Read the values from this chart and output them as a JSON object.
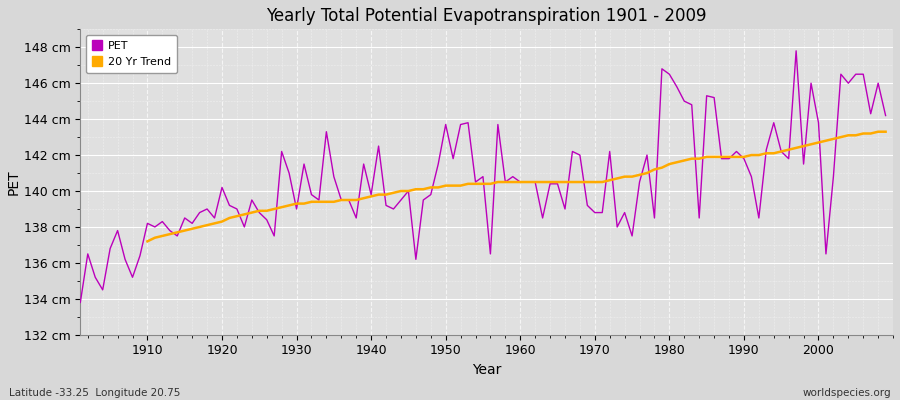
{
  "title": "Yearly Total Potential Evapotranspiration 1901 - 2009",
  "xlabel": "Year",
  "ylabel": "PET",
  "lat_lon_label": "Latitude -33.25  Longitude 20.75",
  "watermark": "worldspecies.org",
  "pet_color": "#bb00bb",
  "trend_color": "#ffaa00",
  "bg_color": "#d8d8d8",
  "plot_bg_color": "#e0e0e0",
  "grid_color": "#ffffff",
  "ylim": [
    132,
    149
  ],
  "yticks": [
    132,
    134,
    136,
    138,
    140,
    142,
    144,
    146,
    148
  ],
  "ytick_labels": [
    "132 cm",
    "134 cm",
    "136 cm",
    "138 cm",
    "140 cm",
    "142 cm",
    "144 cm",
    "146 cm",
    "148 cm"
  ],
  "xticks": [
    1910,
    1920,
    1930,
    1940,
    1950,
    1960,
    1970,
    1980,
    1990,
    2000
  ],
  "xlim": [
    1901,
    2010
  ],
  "years": [
    1901,
    1902,
    1903,
    1904,
    1905,
    1906,
    1907,
    1908,
    1909,
    1910,
    1911,
    1912,
    1913,
    1914,
    1915,
    1916,
    1917,
    1918,
    1919,
    1920,
    1921,
    1922,
    1923,
    1924,
    1925,
    1926,
    1927,
    1928,
    1929,
    1930,
    1931,
    1932,
    1933,
    1934,
    1935,
    1936,
    1937,
    1938,
    1939,
    1940,
    1941,
    1942,
    1943,
    1944,
    1945,
    1946,
    1947,
    1948,
    1949,
    1950,
    1951,
    1952,
    1953,
    1954,
    1955,
    1956,
    1957,
    1958,
    1959,
    1960,
    1961,
    1962,
    1963,
    1964,
    1965,
    1966,
    1967,
    1968,
    1969,
    1970,
    1971,
    1972,
    1973,
    1974,
    1975,
    1976,
    1977,
    1978,
    1979,
    1980,
    1981,
    1982,
    1983,
    1984,
    1985,
    1986,
    1987,
    1988,
    1989,
    1990,
    1991,
    1992,
    1993,
    1994,
    1995,
    1996,
    1997,
    1998,
    1999,
    2000,
    2001,
    2002,
    2003,
    2004,
    2005,
    2006,
    2007,
    2008,
    2009
  ],
  "pet": [
    133.8,
    136.5,
    135.2,
    134.5,
    136.8,
    137.8,
    136.2,
    135.2,
    136.4,
    138.2,
    138.0,
    138.3,
    137.8,
    137.5,
    138.5,
    138.2,
    138.8,
    139.0,
    138.5,
    140.2,
    139.2,
    139.0,
    138.0,
    139.5,
    138.8,
    138.4,
    137.5,
    142.2,
    141.0,
    139.0,
    141.5,
    139.8,
    139.5,
    143.3,
    140.8,
    139.5,
    139.5,
    138.5,
    141.5,
    139.8,
    142.5,
    139.2,
    139.0,
    139.5,
    140.0,
    136.2,
    139.5,
    139.8,
    141.5,
    143.7,
    141.8,
    143.7,
    143.8,
    140.5,
    140.8,
    136.5,
    143.7,
    140.5,
    140.8,
    140.5,
    140.5,
    140.5,
    138.5,
    140.4,
    140.4,
    139.0,
    142.2,
    142.0,
    139.2,
    138.8,
    138.8,
    142.2,
    138.0,
    138.8,
    137.5,
    140.5,
    142.0,
    138.5,
    146.8,
    146.5,
    145.8,
    145.0,
    144.8,
    138.5,
    145.3,
    145.2,
    141.8,
    141.8,
    142.2,
    141.8,
    140.8,
    138.5,
    142.3,
    143.8,
    142.2,
    141.8,
    147.8,
    141.5,
    146.0,
    143.8,
    136.5,
    140.8,
    146.5,
    146.0,
    146.5,
    146.5,
    144.3,
    146.0,
    144.2
  ],
  "trend_years": [
    1910,
    1911,
    1912,
    1913,
    1914,
    1915,
    1916,
    1917,
    1918,
    1919,
    1920,
    1921,
    1922,
    1923,
    1924,
    1925,
    1926,
    1927,
    1928,
    1929,
    1930,
    1931,
    1932,
    1933,
    1934,
    1935,
    1936,
    1937,
    1938,
    1939,
    1940,
    1941,
    1942,
    1943,
    1944,
    1945,
    1946,
    1947,
    1948,
    1949,
    1950,
    1951,
    1952,
    1953,
    1954,
    1955,
    1956,
    1957,
    1958,
    1959,
    1960,
    1961,
    1962,
    1963,
    1964,
    1965,
    1966,
    1967,
    1968,
    1969,
    1970,
    1971,
    1972,
    1973,
    1974,
    1975,
    1976,
    1977,
    1978,
    1979,
    1980,
    1981,
    1982,
    1983,
    1984,
    1985,
    1986,
    1987,
    1988,
    1989,
    1990,
    1991,
    1992,
    1993,
    1994,
    1995,
    1996,
    1997,
    1998,
    1999,
    2000,
    2001,
    2002,
    2003,
    2004,
    2005,
    2006,
    2007,
    2008,
    2009
  ],
  "trend": [
    137.2,
    137.4,
    137.5,
    137.6,
    137.7,
    137.8,
    137.9,
    138.0,
    138.1,
    138.2,
    138.3,
    138.5,
    138.6,
    138.7,
    138.8,
    138.9,
    138.9,
    139.0,
    139.1,
    139.2,
    139.3,
    139.3,
    139.4,
    139.4,
    139.4,
    139.4,
    139.5,
    139.5,
    139.5,
    139.6,
    139.7,
    139.8,
    139.8,
    139.9,
    140.0,
    140.0,
    140.1,
    140.1,
    140.2,
    140.2,
    140.3,
    140.3,
    140.3,
    140.4,
    140.4,
    140.4,
    140.4,
    140.5,
    140.5,
    140.5,
    140.5,
    140.5,
    140.5,
    140.5,
    140.5,
    140.5,
    140.5,
    140.5,
    140.5,
    140.5,
    140.5,
    140.5,
    140.6,
    140.7,
    140.8,
    140.8,
    140.9,
    141.0,
    141.2,
    141.3,
    141.5,
    141.6,
    141.7,
    141.8,
    141.8,
    141.9,
    141.9,
    141.9,
    141.9,
    141.9,
    141.9,
    142.0,
    142.0,
    142.1,
    142.1,
    142.2,
    142.3,
    142.4,
    142.5,
    142.6,
    142.7,
    142.8,
    142.9,
    143.0,
    143.1,
    143.1,
    143.2,
    143.2,
    143.3,
    143.3
  ]
}
